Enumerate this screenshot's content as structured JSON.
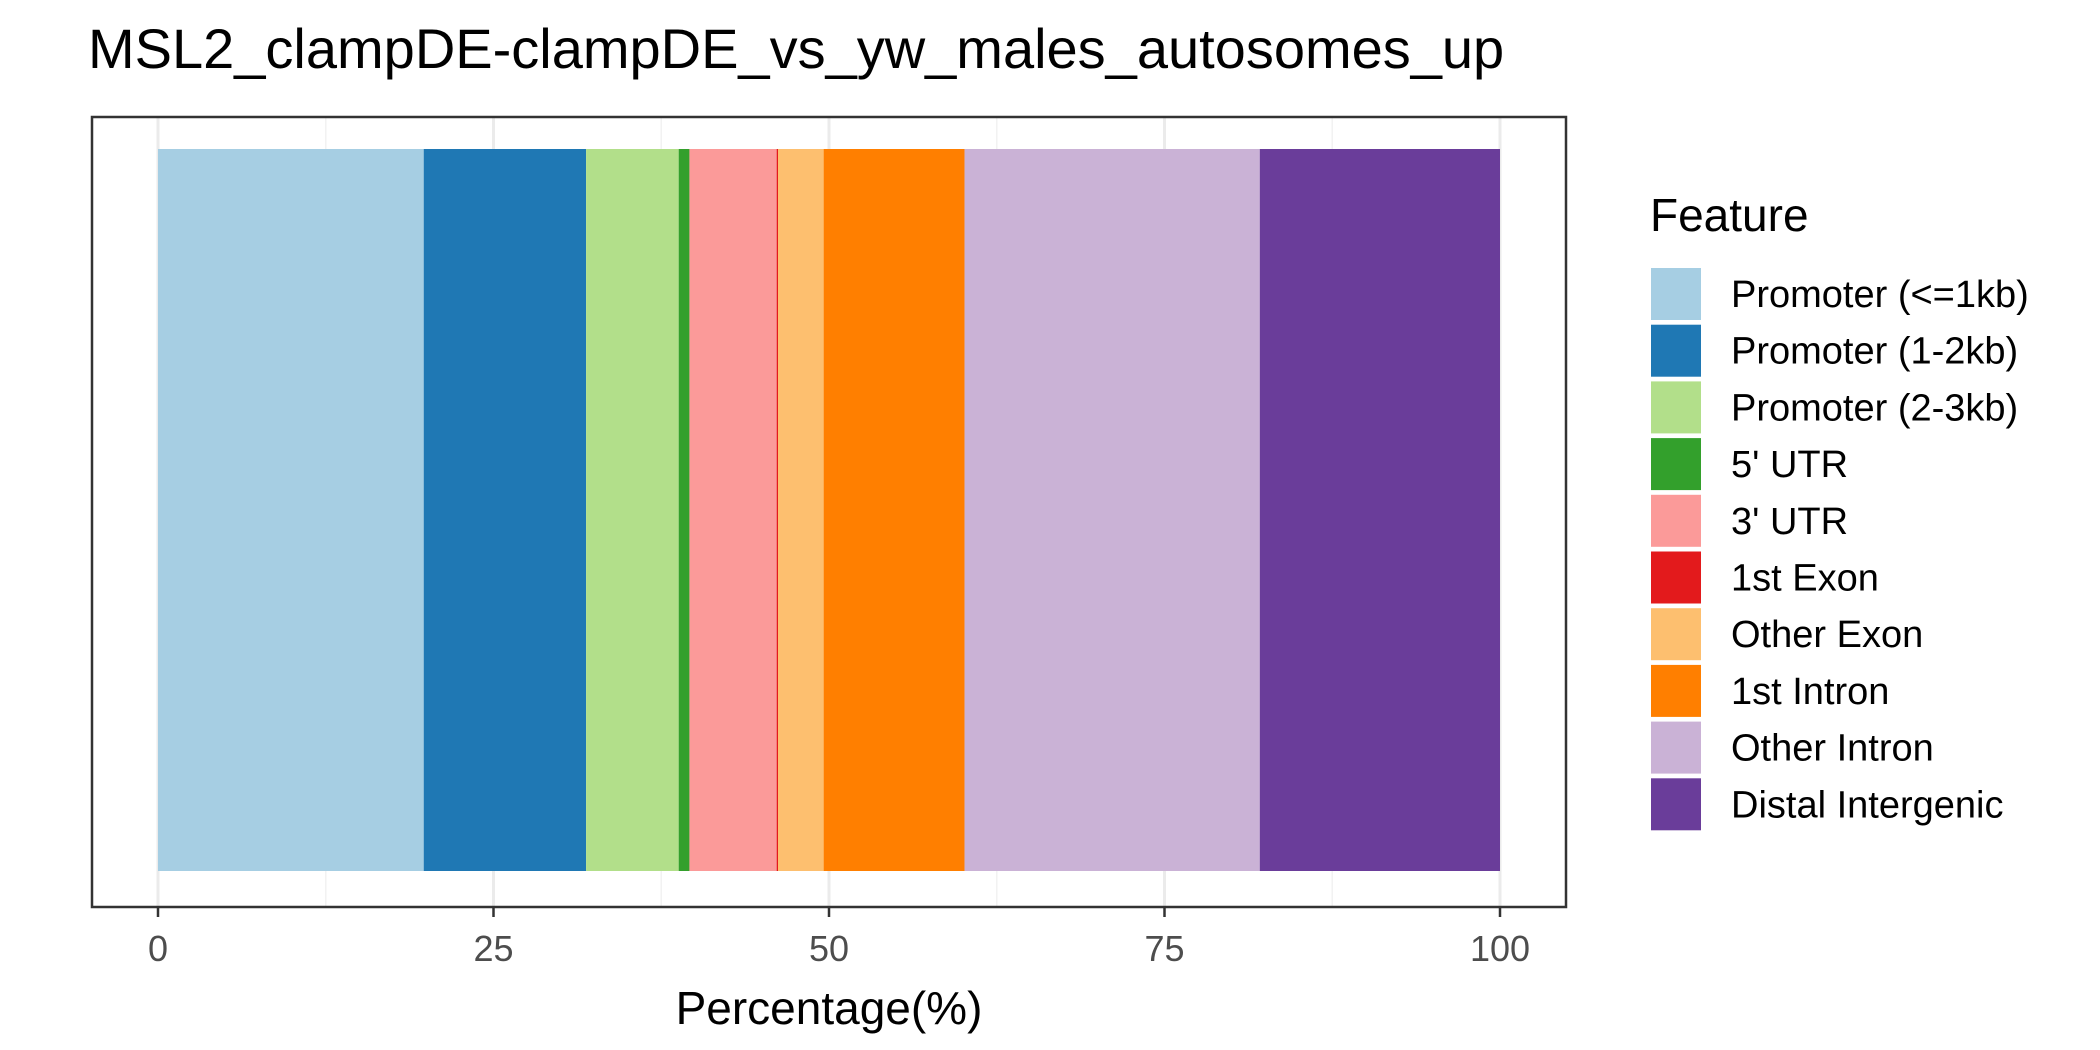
{
  "chart_data": {
    "type": "bar",
    "orientation": "horizontal-stacked",
    "title": "MSL2_clampDE-clampDE_vs_yw_males_autosomes_up",
    "xlabel": "Percentage(%)",
    "ylabel": "",
    "xlim": [
      0,
      100
    ],
    "xticks": [
      0,
      25,
      50,
      75,
      100
    ],
    "grid": true,
    "legend": {
      "title": "Feature",
      "position": "right"
    },
    "series": [
      {
        "name": "Promoter (<=1kb)",
        "value": 19.8,
        "color": "#A6CEE3"
      },
      {
        "name": "Promoter (1-2kb)",
        "value": 12.1,
        "color": "#1F78B4"
      },
      {
        "name": "Promoter (2-3kb)",
        "value": 6.9,
        "color": "#B2DF8A"
      },
      {
        "name": "5' UTR",
        "value": 0.8,
        "color": "#33A02C"
      },
      {
        "name": "3' UTR",
        "value": 6.5,
        "color": "#FB9A99"
      },
      {
        "name": "1st Exon",
        "value": 0.1,
        "color": "#E31A1C"
      },
      {
        "name": "Other Exon",
        "value": 3.4,
        "color": "#FDBF6F"
      },
      {
        "name": "1st Intron",
        "value": 10.5,
        "color": "#FF7F00"
      },
      {
        "name": "Other Intron",
        "value": 22.0,
        "color": "#CAB2D6"
      },
      {
        "name": "Distal Intergenic",
        "value": 17.9,
        "color": "#6A3D9A"
      }
    ]
  }
}
